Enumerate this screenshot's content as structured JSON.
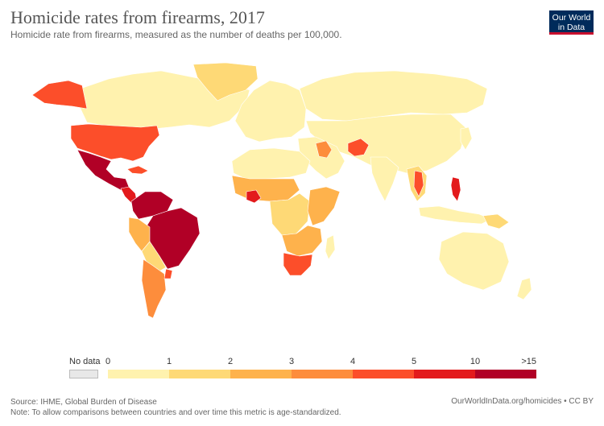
{
  "header": {
    "title": "Homicide rates from firearms, 2017",
    "subtitle": "Homicide rate from firearms, measured as the number of deaths per 100,000."
  },
  "logo": {
    "line1": "Our World",
    "line2": "in Data"
  },
  "legend": {
    "nodata_label": "No data",
    "ticks": [
      "0",
      "1",
      "2",
      "3",
      "4",
      "5",
      "10",
      ">15"
    ],
    "colors": [
      "#fff2ae",
      "#fed976",
      "#feb24c",
      "#fd8d3c",
      "#fc4e2a",
      "#e31a1c",
      "#b10026"
    ]
  },
  "footer": {
    "source": "Source: IHME, Global Burden of Disease",
    "note": "Note: To allow comparisons between countries and over time this metric is age-standardized.",
    "url": "OurWorldInData.org/homicides • CC BY"
  }
}
